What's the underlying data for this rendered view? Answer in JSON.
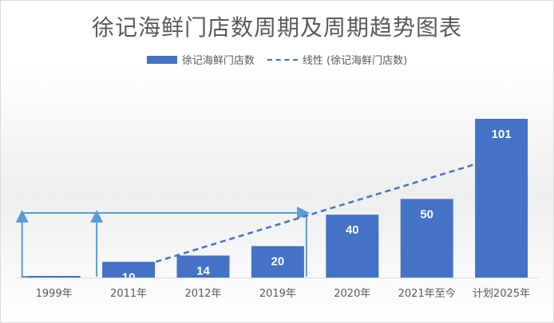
{
  "chart_data": {
    "type": "bar",
    "title": "徐记海鲜门店数周期及周期趋势图表",
    "categories": [
      "1999年",
      "2011年",
      "2012年",
      "2019年",
      "2020年",
      "2021年至今",
      "计划2025年"
    ],
    "series": [
      {
        "name": "徐记海鲜门店数",
        "values": [
          1,
          10,
          14,
          20,
          40,
          50,
          101
        ],
        "color": "#4472c4"
      }
    ],
    "trendline": {
      "name": "线性 (徐记海鲜门店数)",
      "type": "linear",
      "style": "dashed",
      "color": "#4472c4"
    },
    "data_labels": true,
    "ylim": [
      0,
      101
    ],
    "grid": false,
    "legend_position": "top",
    "annotation_color": "#5b9bd5"
  }
}
